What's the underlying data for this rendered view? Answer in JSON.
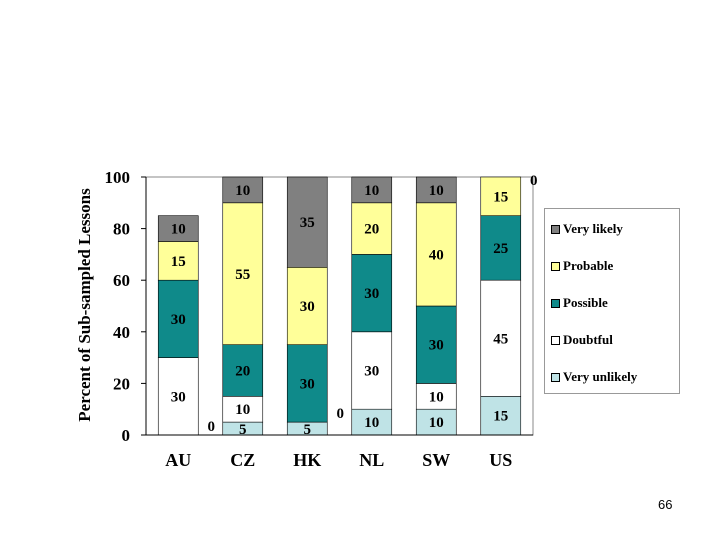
{
  "chart_data": {
    "type": "bar",
    "stacked": true,
    "categories": [
      "AU",
      "CZ",
      "HK",
      "NL",
      "SW",
      "US"
    ],
    "ylabel": "Percent of Sub-sampled Lessons",
    "ylim": [
      0,
      100
    ],
    "yticks": [
      "0",
      "20",
      "40",
      "60",
      "80",
      "100"
    ],
    "grid": false,
    "legend_position": "right",
    "series": [
      {
        "name": "Very unlikely",
        "color": "#bfe3e6",
        "values": [
          0,
          5,
          5,
          10,
          10,
          15
        ],
        "labels": [
          "0",
          "5",
          "5",
          "10",
          "10",
          "15"
        ]
      },
      {
        "name": "Doubtful",
        "color": "#ffffff",
        "values": [
          30,
          10,
          0,
          30,
          10,
          45
        ],
        "labels": [
          "30",
          "10",
          "0",
          "30",
          "10",
          "45"
        ]
      },
      {
        "name": "Possible",
        "color": "#0f8a8a",
        "values": [
          30,
          20,
          30,
          30,
          30,
          25
        ],
        "labels": [
          "30",
          "20",
          "30",
          "30",
          "30",
          "25"
        ]
      },
      {
        "name": "Probable",
        "color": "#ffff99",
        "values": [
          15,
          55,
          30,
          20,
          40,
          15
        ],
        "labels": [
          "15",
          "55",
          "30",
          "20",
          "40",
          "15"
        ]
      },
      {
        "name": "Very likely",
        "color": "#808080",
        "values": [
          10,
          10,
          35,
          10,
          10,
          0
        ],
        "labels": [
          "10",
          "10",
          "35",
          "10",
          "10",
          "0"
        ]
      }
    ]
  },
  "legend": {
    "items": [
      {
        "label": "Very likely",
        "color": "#808080"
      },
      {
        "label": "Probable",
        "color": "#ffff99"
      },
      {
        "label": "Possible",
        "color": "#0f8a8a"
      },
      {
        "label": "Doubtful",
        "color": "#ffffff"
      },
      {
        "label": "Very unlikely",
        "color": "#bfe3e6"
      }
    ]
  },
  "page_number": "66"
}
